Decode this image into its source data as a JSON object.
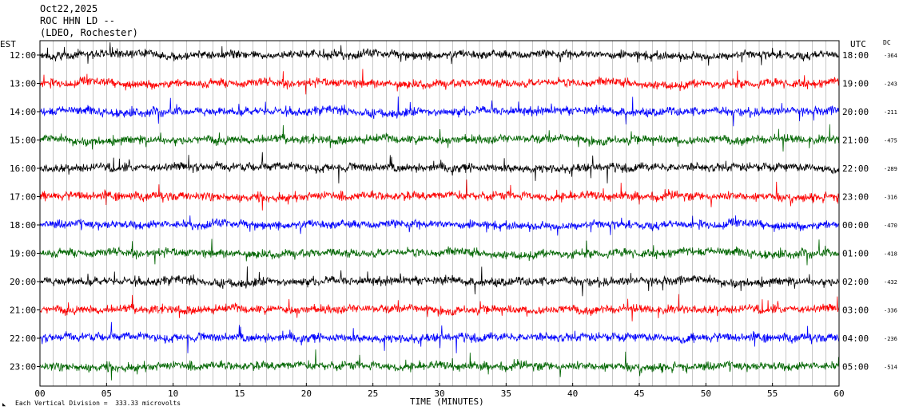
{
  "header": {
    "date": "Oct22,2025",
    "station": "ROC HHN LD --",
    "network": "(LDEO, Rochester)"
  },
  "labels": {
    "left_zone": "EST",
    "right_zone": "UTC",
    "dc_header": "DC",
    "x_axis": "TIME (MINUTES)",
    "footer": "Each Vertical Division =  333.33 microvolts"
  },
  "colors": {
    "cycle": [
      "#000000",
      "#ff0000",
      "#0000ff",
      "#006600"
    ],
    "grid": "#000000",
    "background": "#ffffff"
  },
  "chart_data": {
    "type": "line",
    "subtype": "helicorder",
    "xlabel": "TIME (MINUTES)",
    "xlim": [
      0,
      60
    ],
    "x_ticks": [
      "00",
      "05",
      "10",
      "15",
      "20",
      "25",
      "30",
      "35",
      "40",
      "45",
      "50",
      "55",
      "60"
    ],
    "rows": [
      {
        "est": "12:00",
        "utc": "18:00",
        "dc": "-364"
      },
      {
        "est": "13:00",
        "utc": "19:00",
        "dc": "-243"
      },
      {
        "est": "14:00",
        "utc": "20:00",
        "dc": "-211"
      },
      {
        "est": "15:00",
        "utc": "21:00",
        "dc": "-475"
      },
      {
        "est": "16:00",
        "utc": "22:00",
        "dc": "-289"
      },
      {
        "est": "17:00",
        "utc": "23:00",
        "dc": "-316"
      },
      {
        "est": "18:00",
        "utc": "00:00",
        "dc": "-470"
      },
      {
        "est": "19:00",
        "utc": "01:00",
        "dc": "-418"
      },
      {
        "est": "20:00",
        "utc": "02:00",
        "dc": "-432"
      },
      {
        "est": "21:00",
        "utc": "03:00",
        "dc": "-336"
      },
      {
        "est": "22:00",
        "utc": "04:00",
        "dc": "-236"
      },
      {
        "est": "23:00",
        "utc": "05:00",
        "dc": "-514"
      }
    ],
    "vertical_division_microvolts": 333.33
  }
}
